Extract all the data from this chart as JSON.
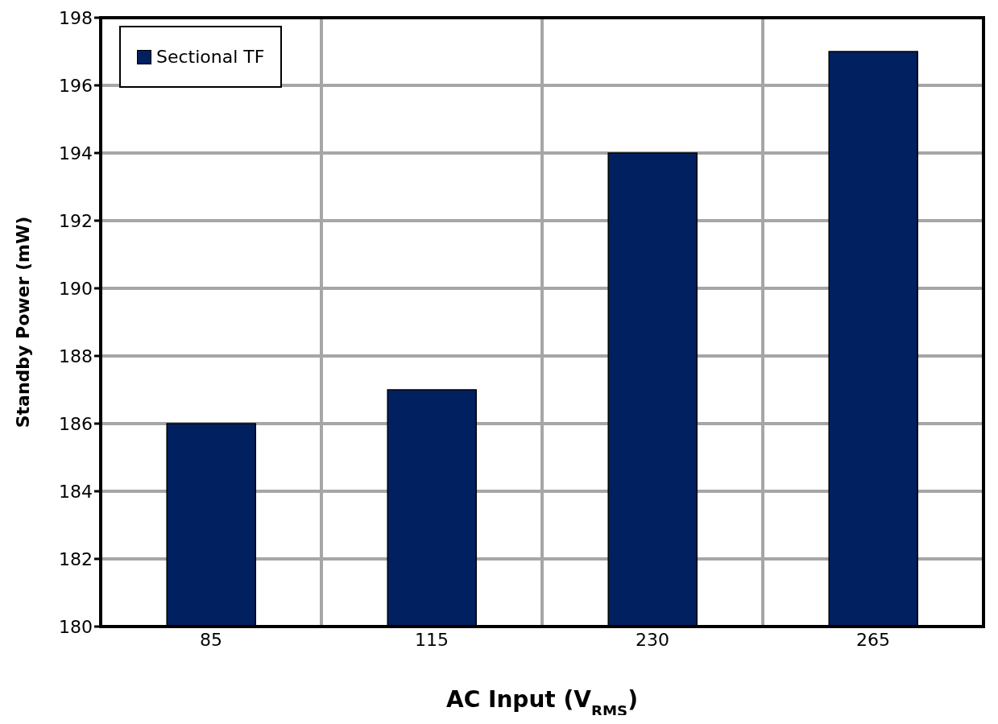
{
  "chart_data": {
    "type": "bar",
    "xlabel": "AC Input (V$_{RMS}$)",
    "ylabel": "Standby Power (mW)",
    "categories": [
      "85",
      "115",
      "230",
      "265"
    ],
    "series": [
      {
        "name": "Sectional TF",
        "color": "#002060",
        "values": [
          186,
          187,
          194,
          197
        ]
      }
    ],
    "ylim": [
      180,
      198
    ],
    "yticks": [
      180,
      182,
      184,
      186,
      188,
      190,
      192,
      194,
      196,
      198
    ],
    "grid": true,
    "legend": "top left"
  }
}
